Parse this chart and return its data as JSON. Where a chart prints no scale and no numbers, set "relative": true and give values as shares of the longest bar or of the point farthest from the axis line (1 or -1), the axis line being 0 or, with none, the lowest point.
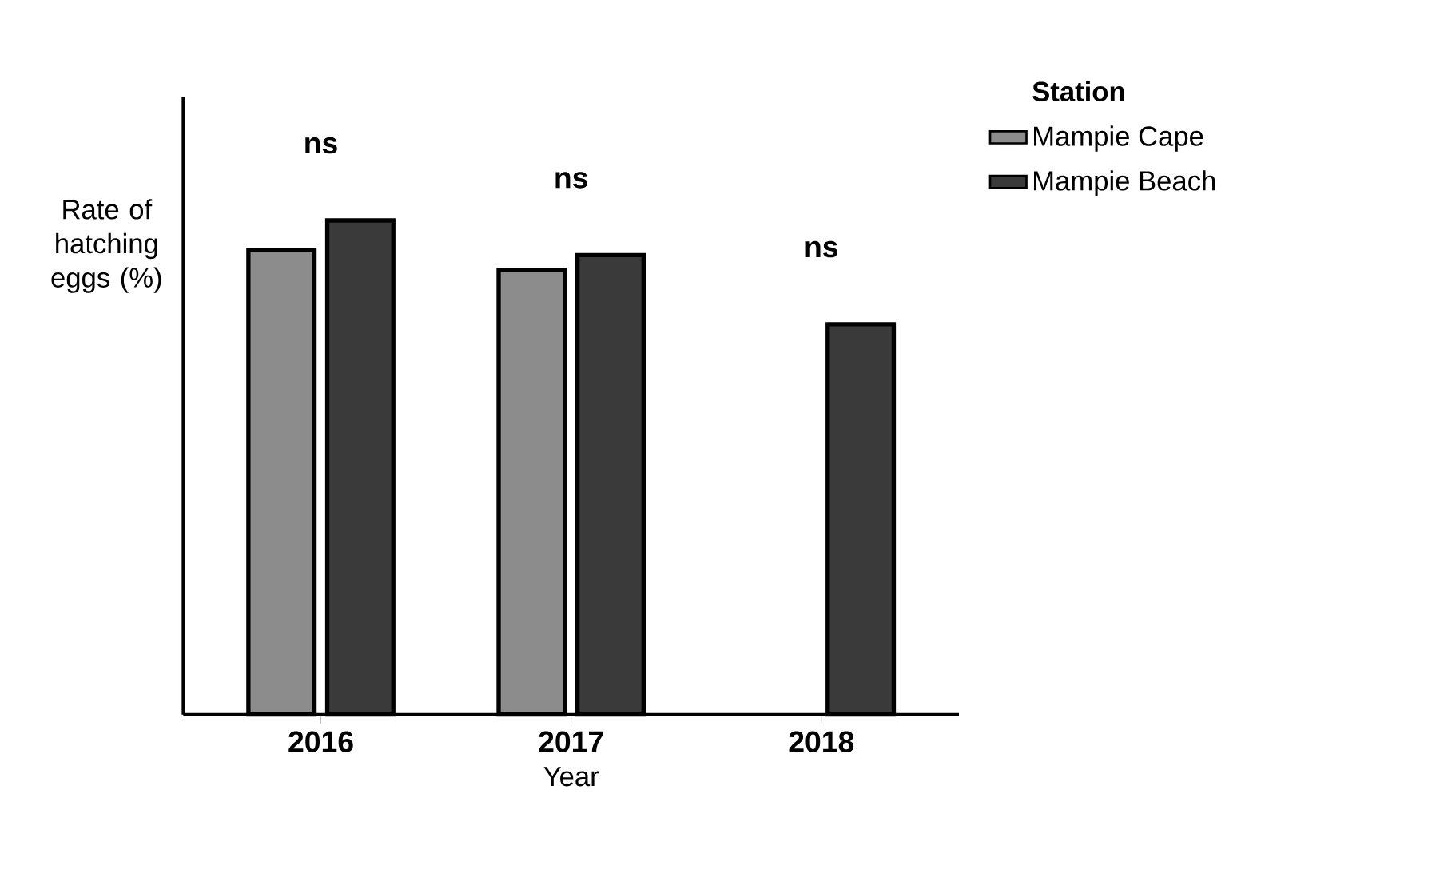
{
  "chart_data": {
    "type": "bar",
    "relative": true,
    "xlabel": "Year",
    "ylabel": "Rate of hatching eggs (%)",
    "legend_title": "Station",
    "categories": [
      "2016",
      "2017",
      "2018"
    ],
    "series": [
      {
        "name": "Mampie Cape",
        "color": "#8c8c8c",
        "values": [
          0.94,
          0.9,
          null
        ]
      },
      {
        "name": "Mampie Beach",
        "color": "#3a3a3a",
        "values": [
          1,
          0.93,
          0.79
        ]
      }
    ],
    "annotations": [
      "ns",
      "ns",
      "ns"
    ],
    "legend": "top right",
    "grid": false
  }
}
